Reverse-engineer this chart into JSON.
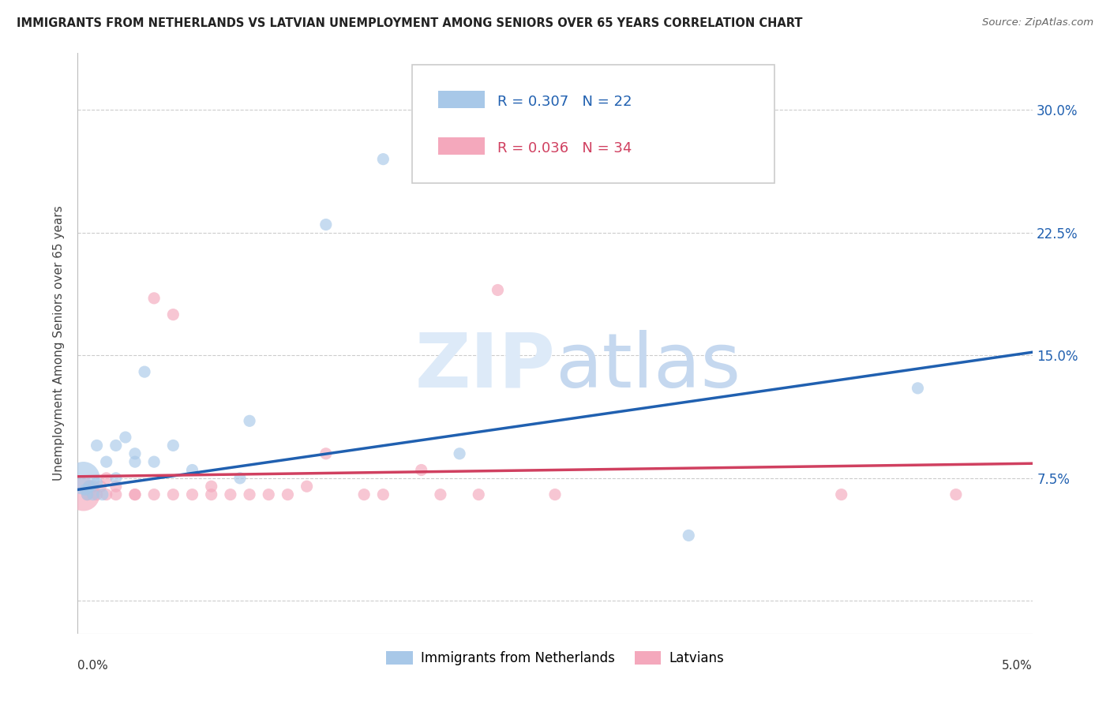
{
  "title": "IMMIGRANTS FROM NETHERLANDS VS LATVIAN UNEMPLOYMENT AMONG SENIORS OVER 65 YEARS CORRELATION CHART",
  "source": "Source: ZipAtlas.com",
  "ylabel": "Unemployment Among Seniors over 65 years",
  "ytick_vals": [
    0.0,
    0.075,
    0.15,
    0.225,
    0.3
  ],
  "ytick_labels_right": [
    "",
    "7.5%",
    "15.0%",
    "22.5%",
    "30.0%"
  ],
  "xlim": [
    0.0,
    0.05
  ],
  "ylim": [
    -0.02,
    0.335
  ],
  "legend_label_blue": "Immigrants from Netherlands",
  "legend_label_pink": "Latvians",
  "blue_color": "#a8c8e8",
  "pink_color": "#f4a8bc",
  "line_blue_color": "#2060b0",
  "line_pink_color": "#d04060",
  "blue_line": [
    0.0,
    0.068,
    0.05,
    0.152
  ],
  "pink_line": [
    0.0,
    0.076,
    0.05,
    0.084
  ],
  "blue_x": [
    0.0003,
    0.0004,
    0.0005,
    0.0006,
    0.0008,
    0.001,
    0.001,
    0.0013,
    0.0015,
    0.002,
    0.002,
    0.0025,
    0.003,
    0.003,
    0.0035,
    0.004,
    0.005,
    0.006,
    0.0085,
    0.009,
    0.013,
    0.016,
    0.02,
    0.032,
    0.044
  ],
  "blue_y": [
    0.075,
    0.068,
    0.065,
    0.07,
    0.065,
    0.072,
    0.095,
    0.065,
    0.085,
    0.095,
    0.075,
    0.1,
    0.085,
    0.09,
    0.14,
    0.085,
    0.095,
    0.08,
    0.075,
    0.11,
    0.23,
    0.27,
    0.09,
    0.04,
    0.13
  ],
  "blue_sizes": [
    900,
    120,
    120,
    120,
    120,
    120,
    120,
    120,
    120,
    120,
    120,
    120,
    120,
    120,
    120,
    120,
    120,
    120,
    120,
    120,
    120,
    120,
    120,
    120,
    120
  ],
  "pink_x": [
    0.0003,
    0.0005,
    0.0006,
    0.0008,
    0.001,
    0.0012,
    0.0015,
    0.0015,
    0.002,
    0.002,
    0.003,
    0.003,
    0.004,
    0.004,
    0.005,
    0.005,
    0.006,
    0.007,
    0.007,
    0.008,
    0.009,
    0.01,
    0.011,
    0.012,
    0.013,
    0.015,
    0.016,
    0.018,
    0.019,
    0.021,
    0.022,
    0.025,
    0.04,
    0.046
  ],
  "pink_y": [
    0.065,
    0.065,
    0.07,
    0.07,
    0.065,
    0.07,
    0.065,
    0.075,
    0.065,
    0.07,
    0.065,
    0.065,
    0.065,
    0.185,
    0.065,
    0.175,
    0.065,
    0.065,
    0.07,
    0.065,
    0.065,
    0.065,
    0.065,
    0.07,
    0.09,
    0.065,
    0.065,
    0.08,
    0.065,
    0.065,
    0.19,
    0.065,
    0.065,
    0.065
  ],
  "pink_sizes": [
    900,
    120,
    120,
    120,
    120,
    120,
    120,
    120,
    120,
    120,
    120,
    120,
    120,
    120,
    120,
    120,
    120,
    120,
    120,
    120,
    120,
    120,
    120,
    120,
    120,
    120,
    120,
    120,
    120,
    120,
    120,
    120,
    120,
    120
  ]
}
